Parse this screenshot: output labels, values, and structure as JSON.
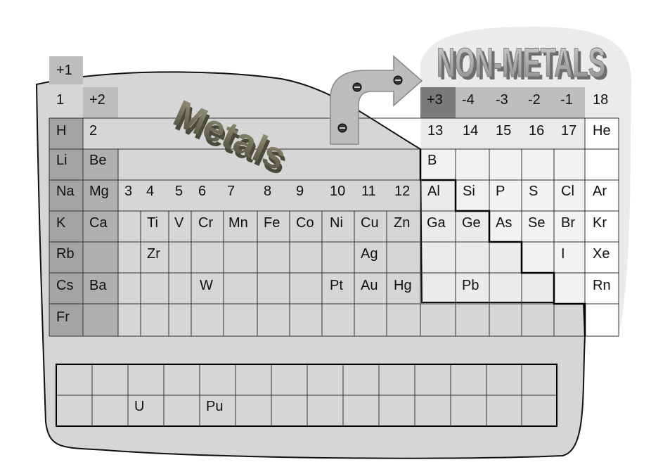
{
  "title_metals": "Metals",
  "title_nonmetals": "NON-METALS",
  "charges": {
    "group1": "+1",
    "group2": "+2",
    "group13": "+3",
    "group14": "-4",
    "group15": "-3",
    "group16": "-2",
    "group17": "-1"
  },
  "group_numbers": [
    "1",
    "2",
    "3",
    "4",
    "5",
    "6",
    "7",
    "8",
    "9",
    "10",
    "11",
    "12",
    "13",
    "14",
    "15",
    "16",
    "17",
    "18"
  ],
  "elements": {
    "H": "H",
    "He": "He",
    "Li": "Li",
    "Be": "Be",
    "B": "B",
    "Na": "Na",
    "Mg": "Mg",
    "Al": "Al",
    "Si": "Si",
    "P": "P",
    "S": "S",
    "Cl": "Cl",
    "Ar": "Ar",
    "K": "K",
    "Ca": "Ca",
    "Ti": "Ti",
    "V": "V",
    "Cr": "Cr",
    "Mn": "Mn",
    "Fe": "Fe",
    "Co": "Co",
    "Ni": "Ni",
    "Cu": "Cu",
    "Zn": "Zn",
    "Ga": "Ga",
    "Ge": "Ge",
    "As": "As",
    "Se": "Se",
    "Br": "Br",
    "Kr": "Kr",
    "Rb": "Rb",
    "Zr": "Zr",
    "Ag": "Ag",
    "I": "I",
    "Xe": "Xe",
    "Cs": "Cs",
    "Ba": "Ba",
    "W": "W",
    "Pt": "Pt",
    "Au": "Au",
    "Hg": "Hg",
    "Pb": "Pb",
    "Rn": "Rn",
    "Fr": "Fr",
    "U": "U",
    "Pu": "Pu"
  },
  "colors": {
    "metal_region": "#d6d6d6",
    "nonmetal_region": "#ebebeb",
    "group12_fill": "#a8a8a8",
    "charge_dark": "#7a7a7a",
    "charge_mid": "#bdbdbd"
  }
}
